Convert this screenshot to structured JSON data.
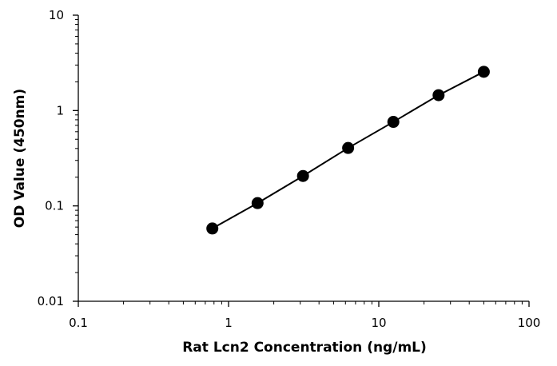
{
  "chart_data": {
    "type": "scatter",
    "title": "",
    "xlabel": "Rat Lcn2 Concentration (ng/mL)",
    "ylabel": "OD Value (450nm)",
    "x_scale": "log",
    "y_scale": "log",
    "xlim": [
      0.1,
      100
    ],
    "ylim": [
      0.01,
      10
    ],
    "x_ticks": [
      "0.1",
      "1",
      "10",
      "100"
    ],
    "y_ticks": [
      "0.01",
      "0.1",
      "1",
      "10"
    ],
    "grid": false,
    "legend": "none",
    "series": [
      {
        "x": [
          0.78,
          1.56,
          3.13,
          6.25,
          12.5,
          25,
          50
        ],
        "y": [
          0.058,
          0.107,
          0.206,
          0.405,
          0.76,
          1.45,
          2.55
        ],
        "marker": "circle",
        "line": "fit",
        "color": "#000000"
      }
    ]
  }
}
